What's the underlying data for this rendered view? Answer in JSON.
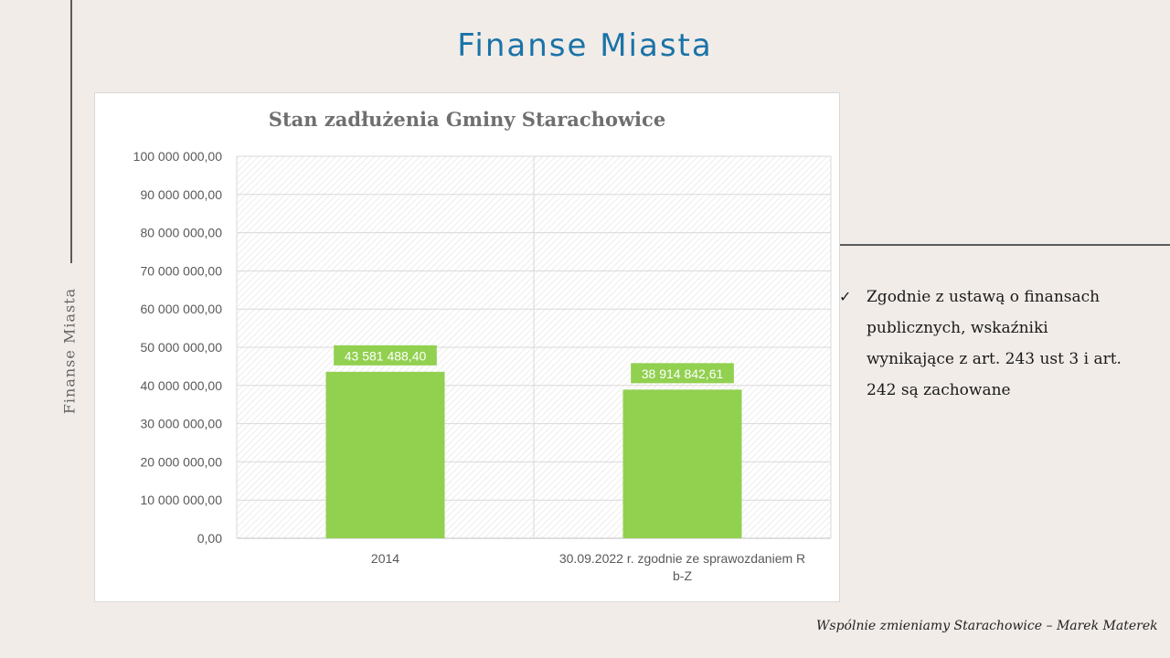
{
  "slide": {
    "title": "Finanse Miasta",
    "side_title": "Finanse Miasta",
    "note_check": "✓",
    "note_text": "Zgodnie z ustawą o finansach publicznych, wskaźniki wynikające z art. 243 ust 3 i art. 242 są zachowane",
    "footer": "Wspólnie zmieniamy Starachowice – Marek Materek"
  },
  "colors": {
    "title": "#1a73a8",
    "bar": "#92d050",
    "background": "#f1ece8"
  },
  "chart_data": {
    "type": "bar",
    "title": "Stan zadłużenia Gminy Starachowice",
    "categories": [
      "2014",
      "30.09.2022 r. zgodnie ze sprawozdaniem Rb-Z"
    ],
    "values": [
      43581488.4,
      38914842.61
    ],
    "data_labels": [
      "43 581 488,40",
      "38 914 842,61"
    ],
    "ylim": [
      0,
      100000000
    ],
    "yticks": [
      0,
      10000000,
      20000000,
      30000000,
      40000000,
      50000000,
      60000000,
      70000000,
      80000000,
      90000000,
      100000000
    ],
    "ytick_labels": [
      "0,00",
      "10 000 000,00",
      "20 000 000,00",
      "30 000 000,00",
      "40 000 000,00",
      "50 000 000,00",
      "60 000 000,00",
      "70 000 000,00",
      "80 000 000,00",
      "90 000 000,00",
      "100 000 000,00"
    ],
    "grid": true,
    "legend": false
  }
}
